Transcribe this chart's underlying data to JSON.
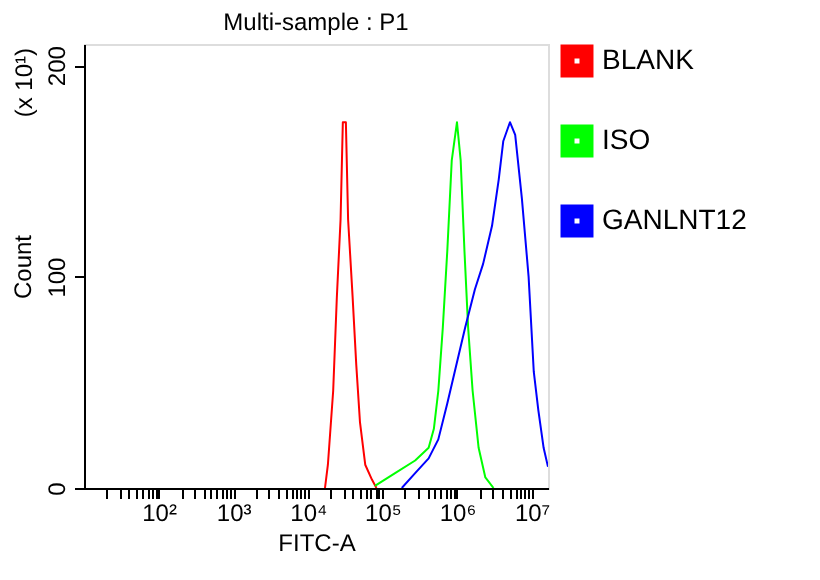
{
  "chart_data": {
    "type": "line",
    "title": "Multi-sample : P1",
    "xlabel": "FITC-A",
    "ylabel": "Count",
    "annotations": [
      "(x 10¹)"
    ],
    "log": "x",
    "grid": false,
    "legend": "top right",
    "marker": "none",
    "line_style": "solid",
    "xlim": [
      10,
      16600000
    ],
    "ylim": [
      0,
      210
    ],
    "yticks": [
      0,
      100,
      200
    ],
    "xticks": [
      {
        "value": 20,
        "label": null
      },
      {
        "value": 30,
        "label": null
      },
      {
        "value": 40,
        "label": null
      },
      {
        "value": 50,
        "label": null
      },
      {
        "value": 60,
        "label": null
      },
      {
        "value": 70,
        "label": null
      },
      {
        "value": 80,
        "label": null
      },
      {
        "value": 90,
        "label": null
      },
      {
        "value": 100,
        "label": "10²"
      },
      {
        "value": 200,
        "label": null
      },
      {
        "value": 300,
        "label": null
      },
      {
        "value": 400,
        "label": null
      },
      {
        "value": 500,
        "label": null
      },
      {
        "value": 600,
        "label": null
      },
      {
        "value": 700,
        "label": null
      },
      {
        "value": 800,
        "label": null
      },
      {
        "value": 900,
        "label": null
      },
      {
        "value": 1000,
        "label": "10³"
      },
      {
        "value": 2000,
        "label": null
      },
      {
        "value": 3000,
        "label": null
      },
      {
        "value": 4000,
        "label": null
      },
      {
        "value": 5000,
        "label": null
      },
      {
        "value": 6000,
        "label": null
      },
      {
        "value": 7000,
        "label": null
      },
      {
        "value": 8000,
        "label": null
      },
      {
        "value": 9000,
        "label": null
      },
      {
        "value": 10000,
        "label": "10⁴"
      },
      {
        "value": 20000,
        "label": null
      },
      {
        "value": 30000,
        "label": null
      },
      {
        "value": 40000,
        "label": null
      },
      {
        "value": 50000,
        "label": null
      },
      {
        "value": 60000,
        "label": null
      },
      {
        "value": 70000,
        "label": null
      },
      {
        "value": 80000,
        "label": null
      },
      {
        "value": 90000,
        "label": null
      },
      {
        "value": 100000,
        "label": "10⁵"
      },
      {
        "value": 200000,
        "label": null
      },
      {
        "value": 300000,
        "label": null
      },
      {
        "value": 400000,
        "label": null
      },
      {
        "value": 500000,
        "label": null
      },
      {
        "value": 600000,
        "label": null
      },
      {
        "value": 700000,
        "label": null
      },
      {
        "value": 800000,
        "label": null
      },
      {
        "value": 900000,
        "label": null
      },
      {
        "value": 1000000,
        "label": "10⁶"
      },
      {
        "value": 2000000,
        "label": null
      },
      {
        "value": 3000000,
        "label": null
      },
      {
        "value": 4000000,
        "label": null
      },
      {
        "value": 5000000,
        "label": null
      },
      {
        "value": 6000000,
        "label": null
      },
      {
        "value": 7000000,
        "label": null
      },
      {
        "value": 8000000,
        "label": null
      },
      {
        "value": 9000000,
        "label": null
      },
      {
        "value": 10000000,
        "label": "10⁷"
      }
    ],
    "series": [
      {
        "name": "BLANK",
        "color": "#ff0000",
        "x": [
          17000,
          18600,
          21900,
          24500,
          27500,
          29500,
          32400,
          34700,
          39800,
          44700,
          50100,
          58900,
          72400,
          83200
        ],
        "values": [
          0,
          11,
          46,
          90,
          127,
          173,
          173,
          127,
          91,
          58,
          31,
          11,
          4,
          0
        ]
      },
      {
        "name": "ISO",
        "color": "#00ff00",
        "x": [
          79400,
          148000,
          275000,
          417000,
          490000,
          562000,
          646000,
          741000,
          851000,
          1000000,
          1120000,
          1260000,
          1410000,
          1620000,
          1950000,
          2400000,
          3090000
        ],
        "values": [
          1,
          7,
          13,
          19,
          28,
          46,
          76,
          112,
          155,
          173,
          155,
          112,
          76,
          46,
          19,
          5,
          0
        ]
      },
      {
        "name": "GANLNT12",
        "color": "#0000ff",
        "x": [
          182000,
          275000,
          417000,
          562000,
          741000,
          933000,
          1290000,
          1740000,
          2240000,
          2950000,
          3630000,
          4170000,
          5130000,
          6030000,
          7410000,
          9120000,
          10700000,
          12300000,
          14500000,
          16600000
        ],
        "values": [
          0,
          7,
          14,
          23,
          40,
          55,
          76,
          94,
          106,
          124,
          146,
          164,
          173,
          167,
          137,
          100,
          55,
          37,
          19,
          10
        ]
      }
    ]
  }
}
